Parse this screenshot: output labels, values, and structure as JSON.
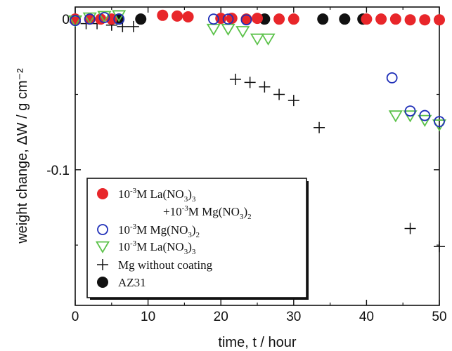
{
  "chart_data": {
    "type": "scatter",
    "title": "",
    "xlabel": "time,  t / hour",
    "ylabel": "weight change,  ΔW / g cm⁻²",
    "xlim": [
      0,
      50
    ],
    "ylim": [
      -0.19,
      0.008
    ],
    "x_ticks": [
      0,
      10,
      20,
      30,
      40,
      50
    ],
    "x_tick_labels": [
      "0",
      "10",
      "20",
      "30",
      "40",
      "50"
    ],
    "y_ticks": [
      0,
      -0.1
    ],
    "y_tick_labels": [
      "0",
      "-0.1"
    ],
    "grid": false,
    "legend_position": "bottom-left",
    "series": [
      {
        "key": "la_mg",
        "label": {
          "base1": "10",
          "sup1": "-3",
          "mid1": "M La(NO",
          "sub1": "3",
          "end1": ")",
          "sub1b": "3",
          "line2_pre": "+10",
          "sup2": "-3",
          "mid2": "M Mg(NO",
          "sub2": "3",
          "end2": ")",
          "sub2b": "2"
        },
        "marker": "filled-circle",
        "color": "#e8262a",
        "points": [
          {
            "x": 0,
            "y": 0
          },
          {
            "x": 2,
            "y": 0
          },
          {
            "x": 3.5,
            "y": 0
          },
          {
            "x": 5,
            "y": 0
          },
          {
            "x": 12,
            "y": 0.0025
          },
          {
            "x": 14,
            "y": 0.002
          },
          {
            "x": 15.5,
            "y": 0.0015
          },
          {
            "x": 20,
            "y": 0.0005
          },
          {
            "x": 21.5,
            "y": 0.0005
          },
          {
            "x": 23.5,
            "y": 0
          },
          {
            "x": 25,
            "y": 0.0005
          },
          {
            "x": 28,
            "y": 0
          },
          {
            "x": 30,
            "y": 0
          },
          {
            "x": 40,
            "y": 0
          },
          {
            "x": 42,
            "y": 0
          },
          {
            "x": 44,
            "y": 0
          },
          {
            "x": 46,
            "y": -0.0005
          },
          {
            "x": 48,
            "y": -0.0005
          },
          {
            "x": 50,
            "y": -0.0005
          }
        ]
      },
      {
        "key": "mg_nitrate",
        "label": {
          "base": "10",
          "sup": "-3",
          "mid": "M Mg(NO",
          "sub": "3",
          "end": ")",
          "subb": "2"
        },
        "marker": "open-circle",
        "color": "#1f2fb8",
        "points": [
          {
            "x": 0,
            "y": -0.001
          },
          {
            "x": 2,
            "y": 0
          },
          {
            "x": 4,
            "y": 0.001
          },
          {
            "x": 6,
            "y": 0
          },
          {
            "x": 19,
            "y": 0
          },
          {
            "x": 21,
            "y": 0
          },
          {
            "x": 23.5,
            "y": -0.0005
          },
          {
            "x": 43.5,
            "y": -0.039
          },
          {
            "x": 46,
            "y": -0.061
          },
          {
            "x": 48,
            "y": -0.064
          },
          {
            "x": 50,
            "y": -0.068
          }
        ]
      },
      {
        "key": "la_nitrate",
        "label": {
          "base": "10",
          "sup": "-3",
          "mid": "M La(NO",
          "sub": "3",
          "end": ")",
          "subb": "3"
        },
        "marker": "open-triangle-down",
        "color": "#5cc24a",
        "points": [
          {
            "x": 0,
            "y": -0.001
          },
          {
            "x": 2,
            "y": 0.001
          },
          {
            "x": 4,
            "y": 0.002
          },
          {
            "x": 6,
            "y": 0.0025
          },
          {
            "x": 19,
            "y": -0.0065
          },
          {
            "x": 21,
            "y": -0.0065
          },
          {
            "x": 23,
            "y": -0.008
          },
          {
            "x": 25,
            "y": -0.013
          },
          {
            "x": 26.5,
            "y": -0.013
          },
          {
            "x": 44,
            "y": -0.064
          },
          {
            "x": 46,
            "y": -0.064
          },
          {
            "x": 48,
            "y": -0.067
          },
          {
            "x": 50,
            "y": -0.07
          }
        ]
      },
      {
        "key": "bare_mg",
        "label": {
          "text": "Mg without coating"
        },
        "marker": "plus",
        "color": "#111111",
        "points": [
          {
            "x": 0,
            "y": -0.002
          },
          {
            "x": 1.5,
            "y": -0.003
          },
          {
            "x": 3,
            "y": -0.003
          },
          {
            "x": 5,
            "y": -0.004
          },
          {
            "x": 6.5,
            "y": -0.005
          },
          {
            "x": 8,
            "y": -0.005
          },
          {
            "x": 22,
            "y": -0.04
          },
          {
            "x": 24,
            "y": -0.042
          },
          {
            "x": 26,
            "y": -0.045
          },
          {
            "x": 28,
            "y": -0.05
          },
          {
            "x": 30,
            "y": -0.054
          },
          {
            "x": 33.5,
            "y": -0.072
          },
          {
            "x": 46,
            "y": -0.139
          },
          {
            "x": 50,
            "y": -0.151
          }
        ]
      },
      {
        "key": "az31",
        "label": {
          "text": "AZ31"
        },
        "marker": "filled-circle",
        "color": "#111111",
        "points": [
          {
            "x": 6,
            "y": 0
          },
          {
            "x": 9,
            "y": 0
          },
          {
            "x": 26,
            "y": 0
          },
          {
            "x": 34,
            "y": 0
          },
          {
            "x": 37,
            "y": 0
          },
          {
            "x": 39.5,
            "y": 0
          }
        ]
      }
    ]
  }
}
